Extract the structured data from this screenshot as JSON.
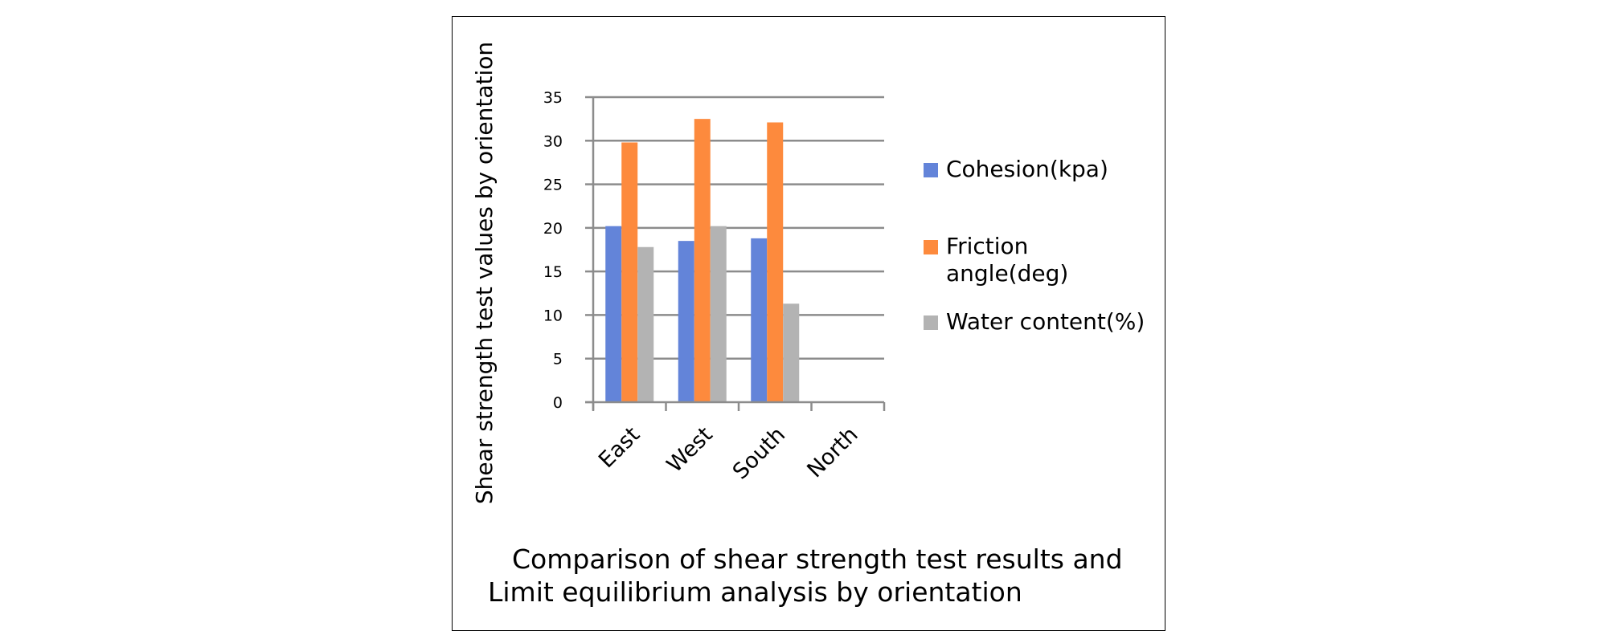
{
  "chart_data": {
    "type": "bar",
    "categories": [
      "East",
      "West",
      "South",
      "North"
    ],
    "series": [
      {
        "name": "Cohesion(kpa)",
        "values": [
          20.2,
          18.5,
          18.8,
          null
        ],
        "color": "#6384d9"
      },
      {
        "name": "Friction angle(deg)",
        "values": [
          29.8,
          32.5,
          32.1,
          null
        ],
        "color": "#fd8a3d"
      },
      {
        "name": "Water content(%)",
        "values": [
          17.8,
          20.2,
          11.3,
          null
        ],
        "color": "#b3b3b3"
      }
    ],
    "ylabel": "Shear strength test values by orientation",
    "ylim": [
      0,
      35
    ],
    "yticks": [
      "0",
      "5",
      "10",
      "15",
      "20",
      "25",
      "30",
      "35"
    ],
    "grid": true,
    "legend_position": "right",
    "caption_lines": [
      "Comparison of shear strength test results and",
      "Limit equilibrium analysis by orientation"
    ]
  },
  "legend": [
    {
      "label": "Cohesion(kpa)",
      "color": "#6384d9"
    },
    {
      "label": "Friction angle(deg)",
      "color": "#fd8a3d"
    },
    {
      "label": "Water content(%)",
      "color": "#b3b3b3"
    }
  ],
  "colors": {
    "grid": "#8c8c8c",
    "axis": "#8c8c8c",
    "frame": "#000000"
  }
}
